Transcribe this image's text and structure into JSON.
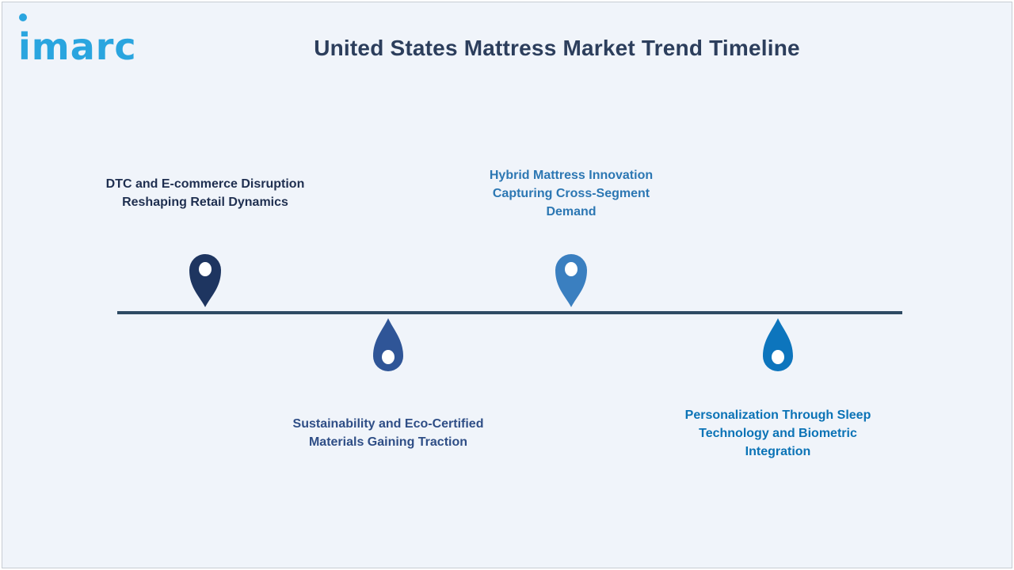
{
  "brand": {
    "logo_text": "imarc"
  },
  "title": "United States Mattress Market Trend Timeline",
  "colors": {
    "background": "#f0f4fa",
    "timeline_line": "#2e4a63",
    "title_text": "#2c3e5c",
    "logo": "#2aa5df"
  },
  "timeline": {
    "items": [
      {
        "label_lines": [
          "DTC and E-commerce Disruption",
          "Reshaping Retail Dynamics"
        ],
        "position": "above",
        "marker_color": "#1e3560",
        "marker_icon": "map-pin-icon"
      },
      {
        "label_lines": [
          "Sustainability and Eco-Certified",
          "Materials Gaining Traction"
        ],
        "position": "below",
        "marker_color": "#2f5597",
        "marker_icon": "drop-pin-icon"
      },
      {
        "label_lines": [
          "Hybrid Mattress Innovation",
          "Capturing Cross-Segment",
          "Demand"
        ],
        "position": "above",
        "marker_color": "#3a7fc0",
        "marker_icon": "map-pin-icon"
      },
      {
        "label_lines": [
          "Personalization Through Sleep",
          "Technology and Biometric",
          "Integration"
        ],
        "position": "below",
        "marker_color": "#0d75bd",
        "marker_icon": "drop-pin-icon"
      }
    ]
  }
}
